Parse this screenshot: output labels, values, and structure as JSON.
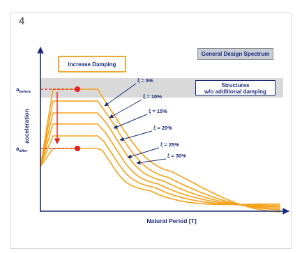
{
  "panel_number": "4",
  "boxes": {
    "increase_damping": "Increase Damping",
    "general_design_spectrum": "General Design Spectrum",
    "structures_line1": "Structures",
    "structures_line2": "w/o additional damping"
  },
  "colors": {
    "curve": "#f5a21c",
    "arrow": "#e3221c",
    "marker": "#e3221c",
    "axis": "#1a2a78",
    "band": "#d9d9d9",
    "label": "#1a2a78"
  },
  "chart_data": {
    "type": "line",
    "title": "",
    "xlabel": "Natural Period [T]",
    "ylabel": "acceleration",
    "y_markers": [
      {
        "base": "a",
        "sub": "before"
      },
      {
        "base": "a",
        "sub": "after"
      }
    ],
    "series": [
      {
        "name": "ξ = 5%"
      },
      {
        "name": "ξ = 10%"
      },
      {
        "name": "ξ = 15%"
      },
      {
        "name": "ξ = 20%"
      },
      {
        "name": "ξ = 25%"
      },
      {
        "name": "ξ = 30%"
      }
    ]
  }
}
